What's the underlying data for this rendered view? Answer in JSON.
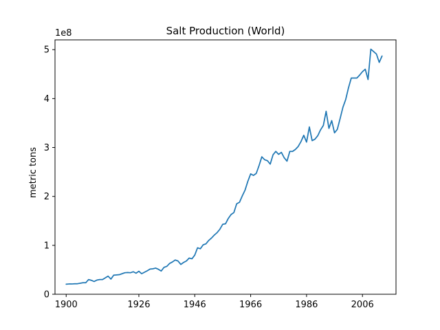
{
  "chart_data": {
    "type": "line",
    "title": "Salt Production (World)",
    "xlabel": "",
    "ylabel": "metric tons",
    "y_scale_label": "1e8",
    "y_scale": 100000000,
    "xlim": [
      1896,
      2018
    ],
    "ylim": [
      0,
      520000000
    ],
    "x_ticks": [
      1900,
      1926,
      1946,
      1966,
      1986,
      2006
    ],
    "x_tick_labels": [
      "1900",
      "1926",
      "1946",
      "1966",
      "1986",
      "2006"
    ],
    "y_ticks": [
      0,
      100000000,
      200000000,
      300000000,
      400000000,
      500000000
    ],
    "y_tick_labels": [
      "0",
      "1",
      "2",
      "3",
      "4",
      "5"
    ],
    "grid": false,
    "colors": {
      "series": "#1f77b4"
    },
    "series": [
      {
        "x": [
          1900,
          1901,
          1902,
          1903,
          1904,
          1905,
          1906,
          1907,
          1908,
          1909,
          1910,
          1911,
          1912,
          1913,
          1914,
          1915,
          1916,
          1917,
          1918,
          1919,
          1920,
          1921,
          1922,
          1923,
          1924,
          1925,
          1926,
          1927,
          1928,
          1929,
          1930,
          1931,
          1932,
          1933,
          1934,
          1935,
          1936,
          1937,
          1938,
          1939,
          1940,
          1941,
          1942,
          1943,
          1944,
          1945,
          1946,
          1947,
          1948,
          1949,
          1950,
          1951,
          1952,
          1953,
          1954,
          1955,
          1956,
          1957,
          1958,
          1959,
          1960,
          1961,
          1962,
          1963,
          1964,
          1965,
          1966,
          1967,
          1968,
          1969,
          1970,
          1971,
          1972,
          1973,
          1974,
          1975,
          1976,
          1977,
          1978,
          1979,
          1980,
          1981,
          1982,
          1983,
          1984,
          1985,
          1986,
          1987,
          1988,
          1989,
          1990,
          1991,
          1992,
          1993,
          1994,
          1995,
          1996,
          1997,
          1998,
          1999,
          2000,
          2001,
          2002,
          2003,
          2004,
          2005,
          2006,
          2007,
          2008,
          2009,
          2010,
          2011,
          2012,
          2013
        ],
        "values": [
          20500000,
          21000000,
          21000000,
          21500000,
          21500000,
          22500000,
          23500000,
          23500000,
          30000000,
          28500000,
          26000000,
          29000000,
          30000000,
          30000000,
          33500000,
          37000000,
          31000000,
          39000000,
          39500000,
          40000000,
          42000000,
          44000000,
          44500000,
          44000000,
          46000000,
          43000000,
          47000000,
          42000000,
          45000000,
          48000000,
          51500000,
          52000000,
          53500000,
          51000000,
          47500000,
          55000000,
          57000000,
          63000000,
          66000000,
          70000000,
          68000000,
          61000000,
          65000000,
          68000000,
          74000000,
          72500000,
          80000000,
          95000000,
          93000000,
          101000000,
          103000000,
          110000000,
          115000000,
          121000000,
          126000000,
          133000000,
          143000000,
          144000000,
          155000000,
          163000000,
          167000000,
          185000000,
          188000000,
          201000000,
          213000000,
          231000000,
          246000000,
          243000000,
          247000000,
          263000000,
          281000000,
          275000000,
          273000000,
          266000000,
          285000000,
          292000000,
          286000000,
          290000000,
          279000000,
          272000000,
          292000000,
          292000000,
          296000000,
          302000000,
          312000000,
          325000000,
          311000000,
          342000000,
          314000000,
          317000000,
          324000000,
          336000000,
          345000000,
          374000000,
          339000000,
          355000000,
          330000000,
          337000000,
          359000000,
          382000000,
          398000000,
          422000000,
          442000000,
          442000000,
          442000000,
          448000000,
          455000000,
          460000000,
          439000000,
          501000000,
          496000000,
          491000000,
          474000000,
          487000000
        ]
      }
    ]
  }
}
